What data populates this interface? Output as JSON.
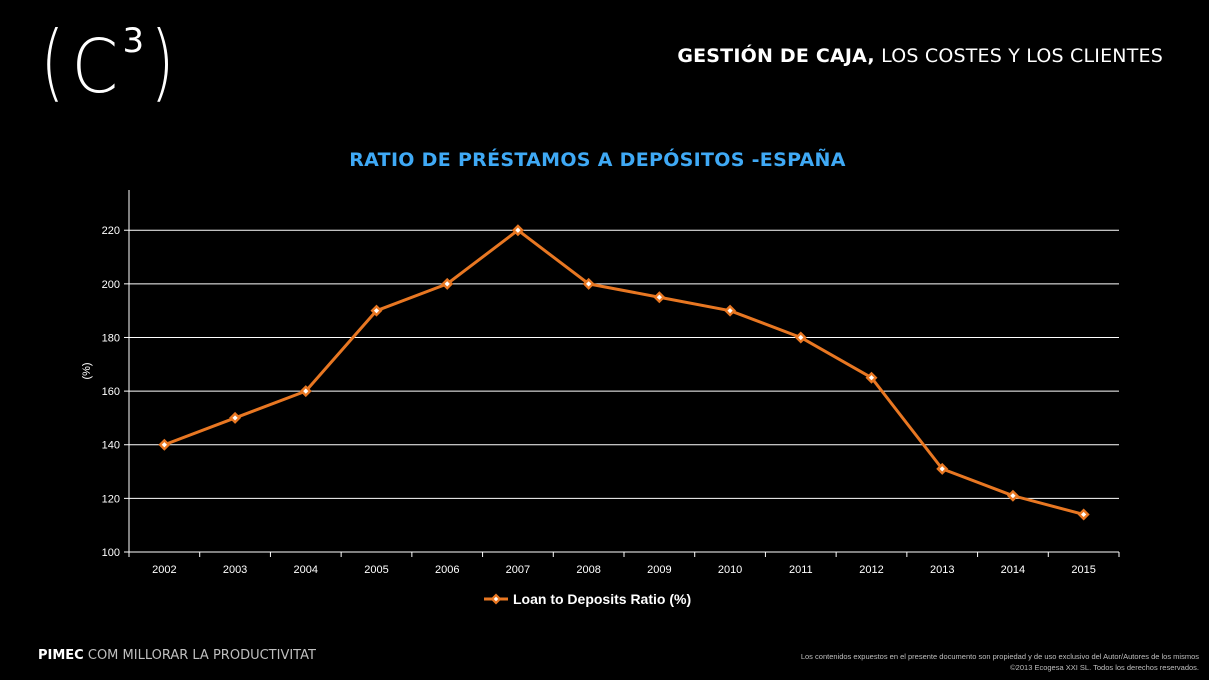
{
  "logo": {
    "open": "(",
    "letter": "C",
    "superscript": "3",
    "close": ")"
  },
  "header": {
    "title_bold": "GESTIÓN DE CAJA,",
    "title_light": " LOS COSTES Y LOS CLIENTES"
  },
  "footer": {
    "brand_bold": "PIMEC",
    "brand_light": " COM MILLORAR LA PRODUCTIVITAT",
    "disclaimer_line1": "Los contenidos expuestos en el presente documento son propiedad y de uso exclusivo del Autor/Autores de los mismos",
    "disclaimer_line2": "©2013 Ecogesa XXI SL. Todos los derechos reservados."
  },
  "colors": {
    "title": "#3fa9f5",
    "series": "#e87722",
    "marker_fill": "#ffffff",
    "grid": "#ffffff",
    "background": "#000000"
  },
  "chart_data": {
    "type": "line",
    "title": "RATIO DE PRÉSTAMOS A DEPÓSITOS -ESPAÑA",
    "xlabel": "",
    "ylabel": "(%)",
    "categories": [
      "2002",
      "2003",
      "2004",
      "2005",
      "2006",
      "2007",
      "2008",
      "2009",
      "2010",
      "2011",
      "2012",
      "2013",
      "2014",
      "2015"
    ],
    "series": [
      {
        "name": "Loan to Deposits Ratio (%)",
        "values": [
          140,
          150,
          160,
          190,
          200,
          220,
          200,
          195,
          190,
          180,
          165,
          131,
          121,
          114
        ]
      }
    ],
    "ylim": [
      100,
      235
    ],
    "yticks": [
      100,
      120,
      140,
      160,
      180,
      200,
      220
    ],
    "grid": true,
    "legend": "bottom"
  }
}
